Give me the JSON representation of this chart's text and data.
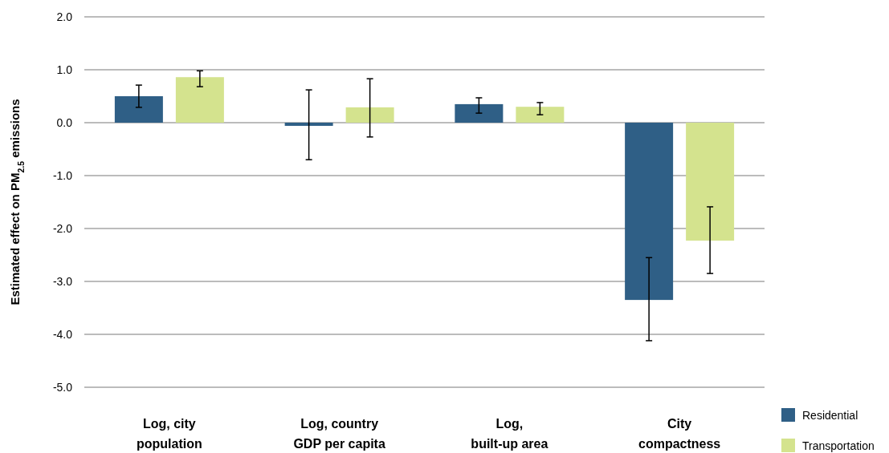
{
  "chart_data": {
    "type": "bar",
    "ylabel": "Estimated effect on PM$_{2.5}$ emissions",
    "categories": [
      "Log, city\npopulation",
      "Log, country\nGDP per capita",
      "Log,\nbuilt-up area",
      "City\ncompactness"
    ],
    "series": [
      {
        "name": "Residential",
        "color": "#2f5f86",
        "values": [
          0.5,
          -0.06,
          0.35,
          -3.35
        ],
        "errors": [
          [
            0.29,
            0.71
          ],
          [
            -0.7,
            0.62
          ],
          [
            0.18,
            0.47
          ],
          [
            -4.12,
            -2.55
          ]
        ]
      },
      {
        "name": "Transportation",
        "color": "#d4e38e",
        "values": [
          0.86,
          0.29,
          0.3,
          -2.23
        ],
        "errors": [
          [
            0.68,
            0.98
          ],
          [
            -0.27,
            0.83
          ],
          [
            0.15,
            0.38
          ],
          [
            -2.85,
            -1.59
          ]
        ]
      }
    ],
    "ylim": [
      -5,
      2
    ],
    "yticks": [
      {
        "value": -5,
        "label": "-5.0"
      },
      {
        "value": -4,
        "label": "-4.0"
      },
      {
        "value": -3,
        "label": "-3.0"
      },
      {
        "value": -2,
        "label": "-2.0"
      },
      {
        "value": -1,
        "label": "-1.0"
      },
      {
        "value": 0,
        "label": "0.0"
      },
      {
        "value": 1,
        "label": "1.0"
      },
      {
        "value": 2,
        "label": "2.0"
      }
    ],
    "grid": "y",
    "legend": "bottom right"
  }
}
